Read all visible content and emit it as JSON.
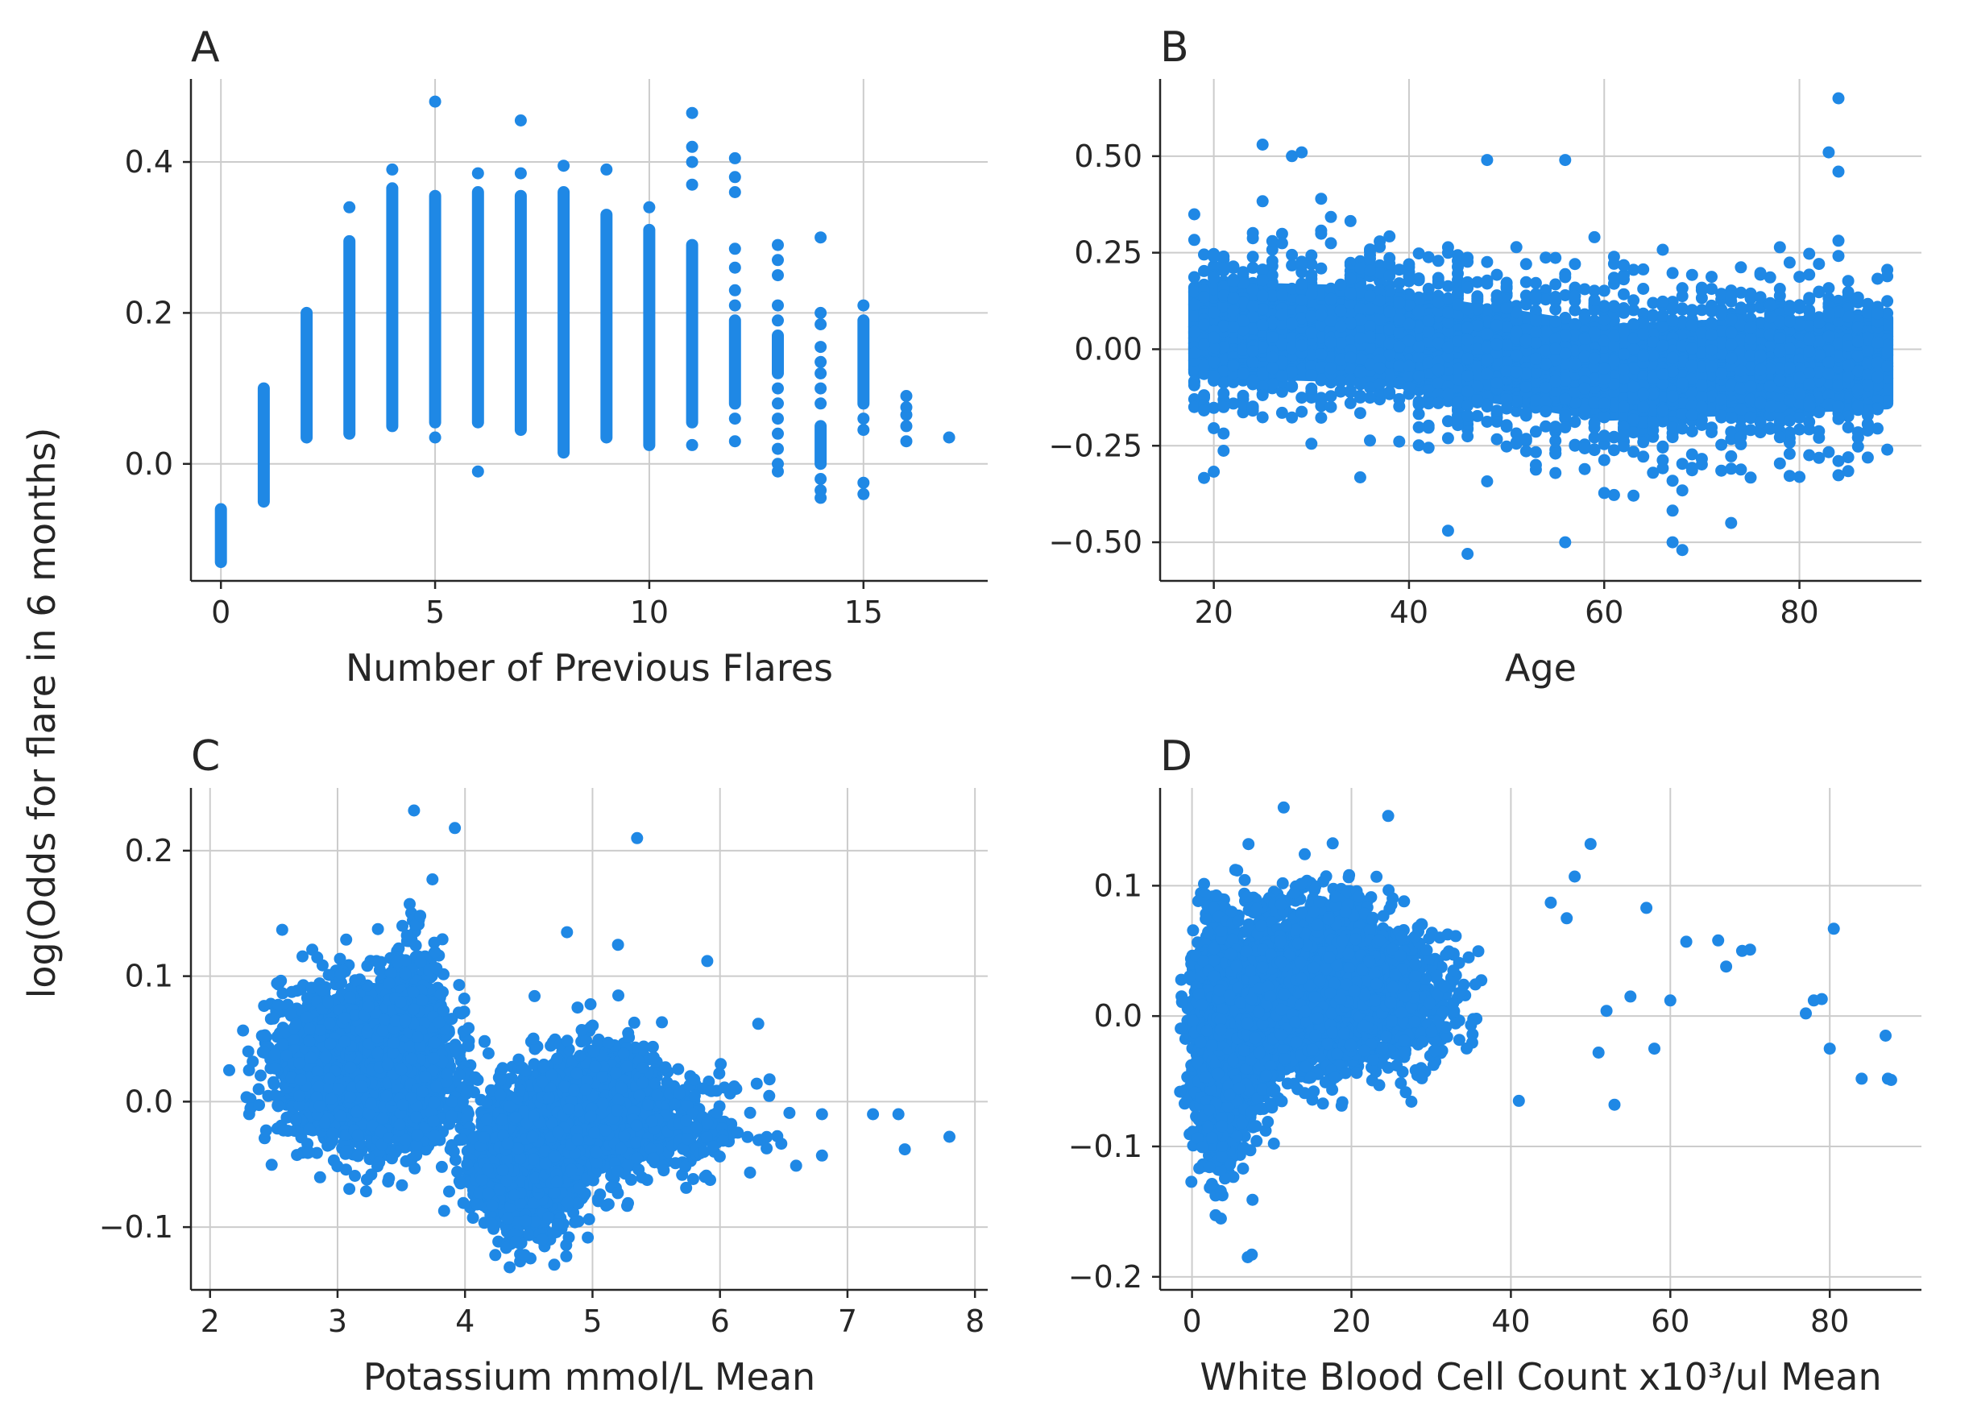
{
  "figure": {
    "ylabel": "log(Odds for flare in 6 months)",
    "point_color": "#1f88e5"
  },
  "chart_data": [
    {
      "id": "A",
      "type": "scatter",
      "title": "A",
      "xlabel": "Number of Previous Flares",
      "xlim": [
        -0.7,
        17.9
      ],
      "ylim": [
        -0.155,
        0.51
      ],
      "xticks": [
        0,
        5,
        10,
        15
      ],
      "xtick_labels": [
        "0",
        "5",
        "10",
        "15"
      ],
      "yticks": [
        0.0,
        0.2,
        0.4
      ],
      "ytick_labels": [
        "0.0",
        "0.2",
        "0.4"
      ],
      "grid": true,
      "series_kind": "discrete_columns",
      "columns": [
        {
          "x": 0,
          "lo": -0.13,
          "hi": -0.06,
          "outliers": []
        },
        {
          "x": 1,
          "lo": -0.05,
          "hi": 0.1,
          "outliers": []
        },
        {
          "x": 2,
          "lo": 0.035,
          "hi": 0.2,
          "outliers": []
        },
        {
          "x": 3,
          "lo": 0.04,
          "hi": 0.295,
          "outliers": [
            0.34
          ]
        },
        {
          "x": 4,
          "lo": 0.05,
          "hi": 0.365,
          "outliers": [
            0.39
          ]
        },
        {
          "x": 5,
          "lo": 0.055,
          "hi": 0.355,
          "outliers": [
            0.035,
            0.48
          ]
        },
        {
          "x": 6,
          "lo": 0.055,
          "hi": 0.36,
          "outliers": [
            -0.01,
            0.385
          ]
        },
        {
          "x": 7,
          "lo": 0.045,
          "hi": 0.355,
          "outliers": [
            0.385,
            0.455
          ]
        },
        {
          "x": 8,
          "lo": 0.015,
          "hi": 0.36,
          "outliers": [
            0.395
          ]
        },
        {
          "x": 9,
          "lo": 0.035,
          "hi": 0.33,
          "outliers": [
            0.39
          ]
        },
        {
          "x": 10,
          "lo": 0.025,
          "hi": 0.31,
          "outliers": [
            0.34
          ]
        },
        {
          "x": 11,
          "lo": 0.055,
          "hi": 0.29,
          "outliers": [
            0.025,
            0.37,
            0.4,
            0.42,
            0.465
          ]
        },
        {
          "x": 12,
          "lo": 0.08,
          "hi": 0.19,
          "outliers": [
            0.03,
            0.06,
            0.21,
            0.23,
            0.26,
            0.285,
            0.36,
            0.38,
            0.405
          ]
        },
        {
          "x": 13,
          "lo": 0.12,
          "hi": 0.17,
          "outliers": [
            -0.01,
            0.0,
            0.02,
            0.04,
            0.06,
            0.08,
            0.1,
            0.19,
            0.21,
            0.25,
            0.27,
            0.29
          ]
        },
        {
          "x": 14,
          "lo": 0.0,
          "hi": 0.05,
          "outliers": [
            -0.045,
            -0.035,
            -0.02,
            0.08,
            0.1,
            0.12,
            0.135,
            0.155,
            0.185,
            0.2,
            0.3
          ]
        },
        {
          "x": 15,
          "lo": 0.08,
          "hi": 0.19,
          "outliers": [
            -0.04,
            -0.025,
            0.045,
            0.06,
            0.21
          ]
        },
        {
          "x": 16,
          "lo": 0.03,
          "hi": 0.03,
          "outliers": [
            0.05,
            0.065,
            0.075,
            0.09
          ]
        },
        {
          "x": 17,
          "lo": 0.035,
          "hi": 0.035,
          "outliers": []
        }
      ]
    },
    {
      "id": "B",
      "type": "scatter",
      "title": "B",
      "xlabel": "Age",
      "xlim": [
        14.5,
        92.5
      ],
      "ylim": [
        -0.6,
        0.7
      ],
      "xticks": [
        20,
        40,
        60,
        80
      ],
      "xtick_labels": [
        "20",
        "40",
        "60",
        "80"
      ],
      "yticks": [
        -0.5,
        -0.25,
        0.0,
        0.25,
        0.5
      ],
      "ytick_labels": [
        "−0.50",
        "−0.25",
        "0.00",
        "0.25",
        "0.50"
      ],
      "grid": true,
      "series_kind": "dense_band",
      "x_range": [
        18,
        89
      ],
      "band_center": [
        [
          18,
          0.05
        ],
        [
          35,
          0.04
        ],
        [
          50,
          -0.02
        ],
        [
          60,
          -0.06
        ],
        [
          70,
          -0.05
        ],
        [
          89,
          -0.03
        ]
      ],
      "band_halfwidth": 0.11,
      "spread": 0.2,
      "outliers": [
        [
          25,
          0.53
        ],
        [
          28,
          0.5
        ],
        [
          29,
          0.51
        ],
        [
          48,
          0.49
        ],
        [
          56,
          0.49
        ],
        [
          83,
          0.51
        ],
        [
          84,
          0.65
        ],
        [
          84,
          0.46
        ],
        [
          46,
          -0.53
        ],
        [
          56,
          -0.5
        ],
        [
          67,
          -0.5
        ],
        [
          68,
          -0.52
        ],
        [
          44,
          -0.47
        ],
        [
          73,
          -0.45
        ]
      ]
    },
    {
      "id": "C",
      "type": "scatter",
      "title": "C",
      "xlabel": "Potassium mmol/L Mean",
      "xlim": [
        1.85,
        8.1
      ],
      "ylim": [
        -0.15,
        0.25
      ],
      "xticks": [
        2,
        3,
        4,
        5,
        6,
        7,
        8
      ],
      "xtick_labels": [
        "2",
        "3",
        "4",
        "5",
        "6",
        "7",
        "8"
      ],
      "yticks": [
        -0.1,
        0.0,
        0.1,
        0.2
      ],
      "ytick_labels": [
        "−0.1",
        "0.0",
        "0.1",
        "0.2"
      ],
      "grid": true,
      "series_kind": "clusters",
      "clusters": [
        {
          "cx": 3.2,
          "cy": 0.03,
          "sx": 0.32,
          "sy": 0.03,
          "n": 2600
        },
        {
          "cx": 3.6,
          "cy": 0.045,
          "sx": 0.12,
          "sy": 0.04,
          "n": 600
        },
        {
          "cx": 4.5,
          "cy": -0.045,
          "sx": 0.2,
          "sy": 0.028,
          "n": 1800
        },
        {
          "cx": 5.1,
          "cy": -0.005,
          "sx": 0.28,
          "sy": 0.025,
          "n": 1300
        },
        {
          "cx": 5.8,
          "cy": -0.02,
          "sx": 0.25,
          "sy": 0.018,
          "n": 150
        }
      ],
      "outliers": [
        [
          2.15,
          0.025
        ],
        [
          2.3,
          0.04
        ],
        [
          3.6,
          0.232
        ],
        [
          3.92,
          0.218
        ],
        [
          5.35,
          0.21
        ],
        [
          4.8,
          0.135
        ],
        [
          5.2,
          0.125
        ],
        [
          5.9,
          0.112
        ],
        [
          6.3,
          0.062
        ],
        [
          6.8,
          -0.01
        ],
        [
          6.8,
          -0.043
        ],
        [
          7.2,
          -0.01
        ],
        [
          7.4,
          -0.01
        ],
        [
          7.45,
          -0.038
        ],
        [
          7.8,
          -0.028
        ],
        [
          4.35,
          -0.132
        ],
        [
          4.7,
          -0.13
        ]
      ]
    },
    {
      "id": "D",
      "type": "scatter",
      "title": "D",
      "xlabel": "White Blood Cell Count x10³/ul Mean",
      "xlim": [
        -4,
        91.5
      ],
      "ylim": [
        -0.21,
        0.175
      ],
      "xticks": [
        0,
        20,
        40,
        60,
        80
      ],
      "xtick_labels": [
        "0",
        "20",
        "40",
        "60",
        "80"
      ],
      "yticks": [
        -0.2,
        -0.1,
        0.0,
        0.1
      ],
      "ytick_labels": [
        "−0.2",
        "−0.1",
        "0.0",
        "0.1"
      ],
      "grid": true,
      "series_kind": "clusters",
      "clusters": [
        {
          "cx": 3.5,
          "cy": -0.02,
          "sx": 1.6,
          "sy": 0.04,
          "n": 2200
        },
        {
          "cx": 8.5,
          "cy": 0.0,
          "sx": 1.2,
          "sy": 0.035,
          "n": 500
        },
        {
          "cx": 16,
          "cy": 0.025,
          "sx": 4.5,
          "sy": 0.03,
          "n": 2800
        },
        {
          "cx": 26,
          "cy": 0.015,
          "sx": 4.0,
          "sy": 0.025,
          "n": 450
        }
      ],
      "outliers": [
        [
          11.5,
          0.16
        ],
        [
          7,
          -0.185
        ],
        [
          7.5,
          -0.183
        ],
        [
          50,
          0.132
        ],
        [
          48,
          0.107
        ],
        [
          45,
          0.087
        ],
        [
          47,
          0.075
        ],
        [
          57,
          0.083
        ],
        [
          62,
          0.057
        ],
        [
          66,
          0.058
        ],
        [
          67,
          0.038
        ],
        [
          69,
          0.05
        ],
        [
          70,
          0.051
        ],
        [
          80.5,
          0.067
        ],
        [
          79,
          0.013
        ],
        [
          78,
          0.012
        ],
        [
          80,
          -0.025
        ],
        [
          77,
          0.002
        ],
        [
          84,
          -0.048
        ],
        [
          87,
          -0.015
        ],
        [
          87.3,
          -0.048
        ],
        [
          87.7,
          -0.049
        ],
        [
          53,
          -0.068
        ],
        [
          58,
          -0.025
        ],
        [
          60,
          0.012
        ],
        [
          55,
          0.015
        ],
        [
          51,
          -0.028
        ],
        [
          52,
          0.004
        ],
        [
          41,
          -0.065
        ]
      ]
    }
  ]
}
